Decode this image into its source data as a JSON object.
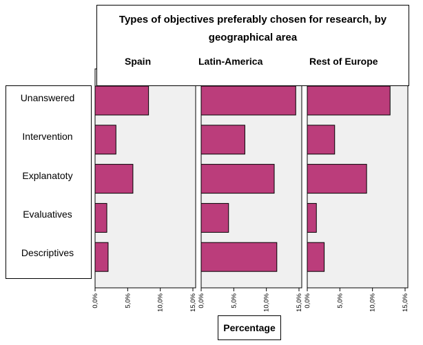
{
  "chart_data": {
    "type": "bar",
    "orientation": "horizontal",
    "title": "Types of objectives preferably chosen for research, by geographical area",
    "xlabel": "Percentage",
    "ylabel": "",
    "categories": [
      "Unanswered",
      "Intervention",
      "Explanatoty",
      "Evaluatives",
      "Descriptives"
    ],
    "xlim": [
      0,
      15
    ],
    "x_ticks": [
      "0,0%",
      "5,0%",
      "10,0%",
      "15,0%"
    ],
    "panels": [
      {
        "name": "Spain",
        "values": [
          8.2,
          3.2,
          5.8,
          1.8,
          2.0
        ]
      },
      {
        "name": "Latin-America",
        "values": [
          14.5,
          6.7,
          11.2,
          4.2,
          11.6
        ]
      },
      {
        "name": "Rest of Europe",
        "values": [
          12.7,
          4.2,
          9.1,
          1.4,
          2.6
        ]
      }
    ],
    "bar_color": "#bb3d7b",
    "panel_bg": "#f0f0f0",
    "grid": false
  }
}
